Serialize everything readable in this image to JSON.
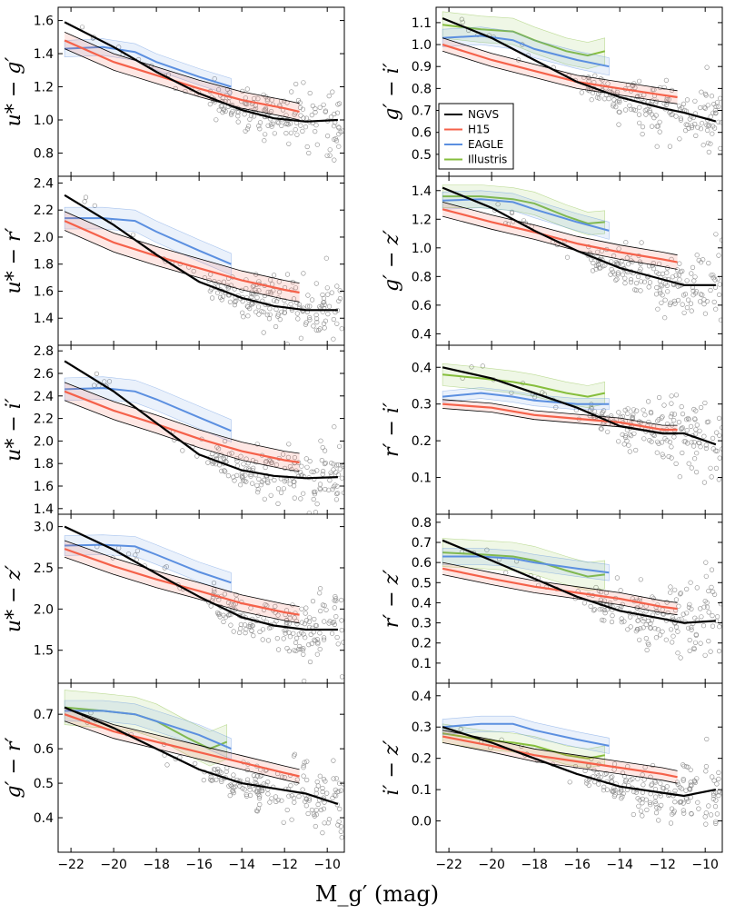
{
  "chart_data": {
    "type": "scatter",
    "xlabel": "M_g′ (mag)",
    "xlim": [
      -22.6,
      -9.2
    ],
    "xticks": [
      -22,
      -20,
      -18,
      -16,
      -14,
      -12,
      -10
    ],
    "xtick_labels": [
      "−22",
      "−20",
      "−18",
      "−16",
      "−14",
      "−12",
      "−10"
    ],
    "legend": {
      "location": "left of right column, top",
      "entries": [
        {
          "name": "NGVS",
          "color": "#000000"
        },
        {
          "name": "H15",
          "color": "#f5614a"
        },
        {
          "name": "EAGLE",
          "color": "#5b8fe0"
        },
        {
          "name": "Illustris",
          "color": "#86be3c"
        }
      ]
    },
    "colors": {
      "NGVS": "#000000",
      "H15": "#f5614a",
      "EAGLE": "#5b8fe0",
      "Illustris": "#86be3c",
      "points": "#8a8a8a"
    },
    "panels": [
      {
        "id": "u-g",
        "ylabel": "u* − g′",
        "ylim": [
          0.66,
          1.68
        ],
        "yticks": [
          0.8,
          1.0,
          1.2,
          1.4,
          1.6
        ],
        "ytick_labels": [
          "0.8",
          "1.0",
          "1.2",
          "1.4",
          "1.6"
        ],
        "ngvs": {
          "x": [
            -22.3,
            -20,
            -18,
            -16,
            -14,
            -12.5,
            -11,
            -9.5
          ],
          "y": [
            1.59,
            1.44,
            1.29,
            1.16,
            1.06,
            1.01,
            0.99,
            1.0
          ]
        },
        "h15": {
          "x": [
            -22.3,
            -20,
            -18,
            -16,
            -14,
            -12,
            -11.3
          ],
          "y": [
            1.48,
            1.35,
            1.27,
            1.19,
            1.12,
            1.07,
            1.05
          ],
          "band": 0.05
        },
        "eagle": {
          "x": [
            -22.3,
            -20.5,
            -19,
            -18,
            -16,
            -14.5
          ],
          "y": [
            1.43,
            1.44,
            1.41,
            1.35,
            1.26,
            1.2
          ],
          "band": 0.05
        }
      },
      {
        "id": "g-i",
        "ylabel": "g′ − i′",
        "ylim": [
          0.4,
          1.17
        ],
        "yticks": [
          0.5,
          0.6,
          0.7,
          0.8,
          0.9,
          1.0,
          1.1
        ],
        "ytick_labels": [
          "0.5",
          "0.6",
          "0.7",
          "0.8",
          "0.9",
          "1.0",
          "1.1"
        ],
        "ngvs": {
          "x": [
            -22.3,
            -20,
            -18,
            -16,
            -14,
            -12,
            -11,
            -9.5
          ],
          "y": [
            1.12,
            1.03,
            0.93,
            0.83,
            0.76,
            0.71,
            0.69,
            0.65
          ]
        },
        "h15": {
          "x": [
            -22.3,
            -20,
            -18,
            -16,
            -14,
            -12,
            -11.3
          ],
          "y": [
            1.0,
            0.93,
            0.88,
            0.83,
            0.8,
            0.77,
            0.76
          ],
          "band": 0.03
        },
        "eagle": {
          "x": [
            -22.3,
            -20.5,
            -19,
            -18,
            -16,
            -14.5
          ],
          "y": [
            1.03,
            1.04,
            1.02,
            0.98,
            0.93,
            0.9
          ],
          "band": 0.04
        },
        "illustris": {
          "x": [
            -22.3,
            -20.5,
            -19,
            -18,
            -16.5,
            -15.5,
            -14.7
          ],
          "y": [
            1.09,
            1.07,
            1.06,
            1.02,
            0.97,
            0.95,
            0.97
          ],
          "band": 0.06
        }
      },
      {
        "id": "u-r",
        "ylabel": "u* − r′",
        "ylim": [
          1.2,
          2.45
        ],
        "yticks": [
          1.4,
          1.6,
          1.8,
          2.0,
          2.2,
          2.4
        ],
        "ytick_labels": [
          "1.4",
          "1.6",
          "1.8",
          "2.0",
          "2.2",
          "2.4"
        ],
        "ngvs": {
          "x": [
            -22.3,
            -20,
            -18,
            -16,
            -14,
            -12.5,
            -11,
            -9.5
          ],
          "y": [
            2.31,
            2.09,
            1.87,
            1.67,
            1.55,
            1.49,
            1.46,
            1.46
          ]
        },
        "h15": {
          "x": [
            -22.3,
            -20,
            -18,
            -16,
            -14,
            -12,
            -11.3
          ],
          "y": [
            2.12,
            1.96,
            1.86,
            1.77,
            1.68,
            1.61,
            1.59
          ],
          "band": 0.07
        },
        "eagle": {
          "x": [
            -22.3,
            -20.5,
            -19,
            -18,
            -16,
            -14.5
          ],
          "y": [
            2.14,
            2.14,
            2.12,
            2.04,
            1.9,
            1.8
          ],
          "band": 0.08
        }
      },
      {
        "id": "g-z",
        "ylabel": "g′ − z′",
        "ylim": [
          0.32,
          1.5
        ],
        "yticks": [
          0.4,
          0.6,
          0.8,
          1.0,
          1.2,
          1.4
        ],
        "ytick_labels": [
          "0.4",
          "0.6",
          "0.8",
          "1.0",
          "1.2",
          "1.4"
        ],
        "ngvs": {
          "x": [
            -22.3,
            -20,
            -18,
            -16,
            -14,
            -12,
            -11,
            -9.5
          ],
          "y": [
            1.42,
            1.28,
            1.12,
            0.98,
            0.86,
            0.78,
            0.74,
            0.74
          ]
        },
        "h15": {
          "x": [
            -22.3,
            -20,
            -18,
            -16,
            -14,
            -12,
            -11.3
          ],
          "y": [
            1.27,
            1.18,
            1.11,
            1.03,
            0.97,
            0.92,
            0.9
          ],
          "band": 0.05
        },
        "eagle": {
          "x": [
            -22.3,
            -20.5,
            -19,
            -18,
            -16,
            -14.5
          ],
          "y": [
            1.33,
            1.34,
            1.32,
            1.27,
            1.18,
            1.12
          ],
          "band": 0.06
        },
        "illustris": {
          "x": [
            -22.3,
            -20.5,
            -19,
            -18,
            -16.5,
            -15.5,
            -14.7
          ],
          "y": [
            1.36,
            1.36,
            1.34,
            1.31,
            1.22,
            1.17,
            1.18
          ],
          "band": 0.08
        }
      },
      {
        "id": "u-i",
        "ylabel": "u* − i′",
        "ylim": [
          1.35,
          2.85
        ],
        "yticks": [
          1.4,
          1.6,
          1.8,
          2.0,
          2.2,
          2.4,
          2.6,
          2.8
        ],
        "ytick_labels": [
          "1.4",
          "1.6",
          "1.8",
          "2.0",
          "2.2",
          "2.4",
          "2.6",
          "2.8"
        ],
        "ngvs": {
          "x": [
            -22.3,
            -20,
            -18,
            -16,
            -14,
            -12.5,
            -11,
            -9.5
          ],
          "y": [
            2.71,
            2.44,
            2.16,
            1.88,
            1.74,
            1.69,
            1.67,
            1.68
          ]
        },
        "h15": {
          "x": [
            -22.3,
            -20,
            -18,
            -16,
            -14,
            -12,
            -11.3
          ],
          "y": [
            2.44,
            2.27,
            2.15,
            2.02,
            1.91,
            1.83,
            1.81
          ],
          "band": 0.08
        },
        "eagle": {
          "x": [
            -22.3,
            -20.5,
            -19,
            -18,
            -16,
            -14.5
          ],
          "y": [
            2.46,
            2.47,
            2.44,
            2.37,
            2.21,
            2.09
          ],
          "band": 0.1
        }
      },
      {
        "id": "r-i",
        "ylabel": "r′ − i′",
        "ylim": [
          0.0,
          0.46
        ],
        "yticks": [
          0.1,
          0.2,
          0.3,
          0.4
        ],
        "ytick_labels": [
          "0.1",
          "0.2",
          "0.3",
          "0.4"
        ],
        "ngvs": {
          "x": [
            -22.3,
            -20,
            -18,
            -16,
            -14,
            -12,
            -11,
            -9.5
          ],
          "y": [
            0.4,
            0.37,
            0.33,
            0.29,
            0.24,
            0.22,
            0.22,
            0.19
          ]
        },
        "h15": {
          "x": [
            -22.3,
            -20,
            -18,
            -16,
            -14,
            -12,
            -11.3
          ],
          "y": [
            0.3,
            0.29,
            0.27,
            0.26,
            0.25,
            0.23,
            0.23
          ],
          "band": 0.012
        },
        "eagle": {
          "x": [
            -22.3,
            -20.5,
            -19,
            -18,
            -16,
            -14.5
          ],
          "y": [
            0.32,
            0.33,
            0.32,
            0.31,
            0.3,
            0.3
          ],
          "band": 0.015
        },
        "illustris": {
          "x": [
            -22.3,
            -20.5,
            -19,
            -18,
            -16.5,
            -15.5,
            -14.7
          ],
          "y": [
            0.38,
            0.37,
            0.36,
            0.35,
            0.33,
            0.32,
            0.33
          ],
          "band": 0.03
        }
      },
      {
        "id": "u-z",
        "ylabel": "u* − z′",
        "ylim": [
          1.1,
          3.15
        ],
        "yticks": [
          1.5,
          2.0,
          2.5,
          3.0
        ],
        "ytick_labels": [
          "1.5",
          "2.0",
          "2.5",
          "3.0"
        ],
        "ngvs": {
          "x": [
            -22.3,
            -20,
            -18,
            -16,
            -14,
            -12.5,
            -11,
            -9.5
          ],
          "y": [
            3.0,
            2.72,
            2.43,
            2.15,
            1.9,
            1.8,
            1.75,
            1.75
          ]
        },
        "h15": {
          "x": [
            -22.3,
            -20,
            -18,
            -16,
            -14,
            -12,
            -11.3
          ],
          "y": [
            2.73,
            2.52,
            2.36,
            2.22,
            2.07,
            1.96,
            1.93
          ],
          "band": 0.1
        },
        "eagle": {
          "x": [
            -22.3,
            -20.5,
            -19,
            -18,
            -16,
            -14.5
          ],
          "y": [
            2.77,
            2.78,
            2.76,
            2.66,
            2.45,
            2.32
          ],
          "band": 0.12
        }
      },
      {
        "id": "r-z",
        "ylabel": "r′ − z′",
        "ylim": [
          0.0,
          0.84
        ],
        "yticks": [
          0.1,
          0.2,
          0.3,
          0.4,
          0.5,
          0.6,
          0.7,
          0.8
        ],
        "ytick_labels": [
          "0.1",
          "0.2",
          "0.3",
          "0.4",
          "0.5",
          "0.6",
          "0.7",
          "0.8"
        ],
        "ngvs": {
          "x": [
            -22.3,
            -20,
            -18,
            -16,
            -14,
            -12,
            -11,
            -9.5
          ],
          "y": [
            0.71,
            0.61,
            0.52,
            0.43,
            0.36,
            0.32,
            0.3,
            0.31
          ]
        },
        "h15": {
          "x": [
            -22.3,
            -20,
            -18,
            -16,
            -14,
            -12,
            -11.3
          ],
          "y": [
            0.57,
            0.52,
            0.48,
            0.45,
            0.42,
            0.38,
            0.37
          ],
          "band": 0.03
        },
        "eagle": {
          "x": [
            -22.3,
            -20.5,
            -19,
            -18,
            -16,
            -14.5
          ],
          "y": [
            0.63,
            0.63,
            0.62,
            0.6,
            0.57,
            0.55
          ],
          "band": 0.04
        },
        "illustris": {
          "x": [
            -22.3,
            -20.5,
            -19,
            -18,
            -16.5,
            -15.5,
            -14.7
          ],
          "y": [
            0.65,
            0.64,
            0.63,
            0.61,
            0.56,
            0.53,
            0.54
          ],
          "band": 0.07
        }
      },
      {
        "id": "g-r",
        "ylabel": "g′ − r′",
        "ylim": [
          0.3,
          0.79
        ],
        "yticks": [
          0.4,
          0.5,
          0.6,
          0.7
        ],
        "ytick_labels": [
          "0.4",
          "0.5",
          "0.6",
          "0.7"
        ],
        "ngvs": {
          "x": [
            -22.3,
            -20,
            -18,
            -16,
            -14,
            -12,
            -11,
            -9.5
          ],
          "y": [
            0.72,
            0.66,
            0.6,
            0.54,
            0.5,
            0.48,
            0.47,
            0.44
          ]
        },
        "h15": {
          "x": [
            -22.3,
            -20,
            -18,
            -16,
            -14,
            -12,
            -11.3
          ],
          "y": [
            0.7,
            0.65,
            0.62,
            0.59,
            0.56,
            0.53,
            0.52
          ],
          "band": 0.02
        },
        "eagle": {
          "x": [
            -22.3,
            -20.5,
            -19,
            -18,
            -16,
            -14.5
          ],
          "y": [
            0.71,
            0.71,
            0.7,
            0.68,
            0.64,
            0.6
          ],
          "band": 0.03
        },
        "illustris": {
          "x": [
            -22.3,
            -20.5,
            -19,
            -18,
            -16.5,
            -15.5,
            -14.7
          ],
          "y": [
            0.72,
            0.71,
            0.7,
            0.68,
            0.63,
            0.6,
            0.62
          ],
          "band": 0.05
        }
      },
      {
        "id": "i-z",
        "ylabel": "i′ − z′",
        "ylim": [
          -0.1,
          0.44
        ],
        "yticks": [
          0.0,
          0.1,
          0.2,
          0.3,
          0.4
        ],
        "ytick_labels": [
          "0.0",
          "0.1",
          "0.2",
          "0.3",
          "0.4"
        ],
        "ngvs": {
          "x": [
            -22.3,
            -20,
            -18,
            -16,
            -14,
            -12,
            -11,
            -9.5
          ],
          "y": [
            0.3,
            0.25,
            0.2,
            0.15,
            0.11,
            0.09,
            0.08,
            0.1
          ]
        },
        "h15": {
          "x": [
            -22.3,
            -20,
            -18,
            -16,
            -14,
            -12,
            -11.3
          ],
          "y": [
            0.27,
            0.24,
            0.21,
            0.19,
            0.17,
            0.15,
            0.14
          ],
          "band": 0.02
        },
        "eagle": {
          "x": [
            -22.3,
            -20.5,
            -19,
            -18,
            -16,
            -14.5
          ],
          "y": [
            0.3,
            0.31,
            0.31,
            0.29,
            0.26,
            0.24
          ],
          "band": 0.025
        },
        "illustris": {
          "x": [
            -22.3,
            -20.5,
            -19,
            -18,
            -16.5,
            -15.5,
            -14.7
          ],
          "y": [
            0.28,
            0.26,
            0.25,
            0.24,
            0.21,
            0.2,
            0.21
          ],
          "band": 0.03
        }
      }
    ]
  }
}
